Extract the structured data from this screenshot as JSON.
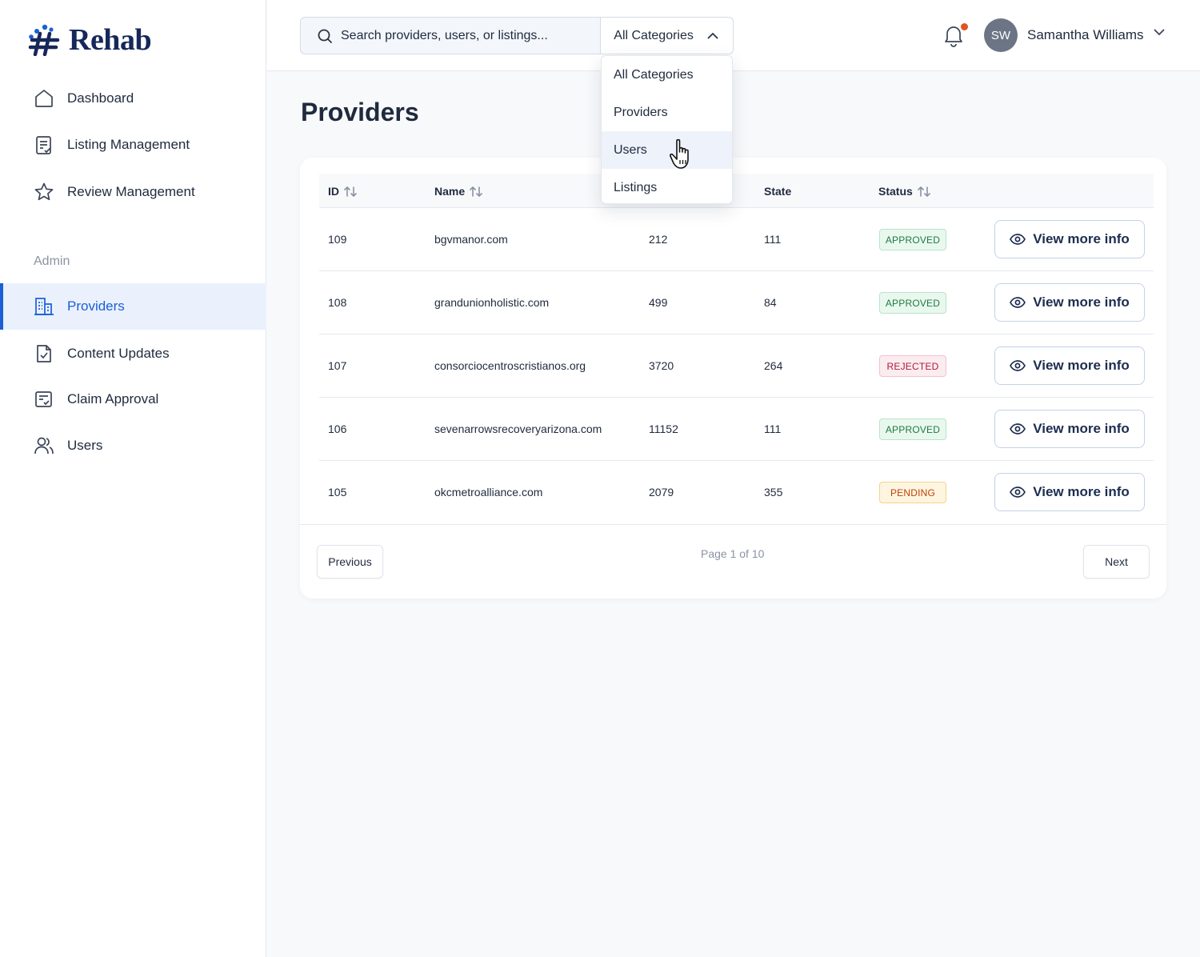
{
  "brand": {
    "name": "Rehab"
  },
  "sidebar": {
    "items": [
      {
        "label": "Dashboard",
        "icon": "home-icon"
      },
      {
        "label": "Listing Management",
        "icon": "clipboard-check-icon"
      },
      {
        "label": "Review Management",
        "icon": "star-icon"
      }
    ],
    "section_label": "Admin",
    "admin_items": [
      {
        "label": "Providers",
        "icon": "building-icon",
        "active": true
      },
      {
        "label": "Content Updates",
        "icon": "document-check-icon"
      },
      {
        "label": "Claim Approval",
        "icon": "form-check-icon"
      },
      {
        "label": "Users",
        "icon": "users-icon"
      }
    ]
  },
  "topbar": {
    "search_placeholder": "Search providers, users, or listings...",
    "category_selected": "All Categories",
    "category_options": [
      "All Categories",
      "Providers",
      "Users",
      "Listings"
    ],
    "hovered_option": "Users",
    "notification_dot_color": "#e0541f",
    "user": {
      "initials": "SW",
      "name": "Samantha Williams"
    }
  },
  "page": {
    "title": "Providers"
  },
  "table": {
    "columns": [
      "ID",
      "Name",
      "",
      "State",
      "Status"
    ],
    "sortable": [
      "ID",
      "Name",
      "Status"
    ],
    "action_label": "View more info",
    "rows": [
      {
        "id": "109",
        "name": "bgvmanor.com",
        "col3": "212",
        "state": "111",
        "status": "APPROVED"
      },
      {
        "id": "108",
        "name": "grandunionholistic.com",
        "col3": "499",
        "state": "84",
        "status": "APPROVED"
      },
      {
        "id": "107",
        "name": "consorciocentroscristianos.org",
        "col3": "3720",
        "state": "264",
        "status": "REJECTED"
      },
      {
        "id": "106",
        "name": "sevenarrowsrecoveryarizona.com",
        "col3": "11152",
        "state": "111",
        "status": "APPROVED"
      },
      {
        "id": "105",
        "name": "okcmetroalliance.com",
        "col3": "2079",
        "state": "355",
        "status": "PENDING"
      }
    ]
  },
  "pagination": {
    "previous": "Previous",
    "info": "Page 1 of 10",
    "next": "Next"
  },
  "colors": {
    "accent": "#1b5fd6",
    "brand": "#16275a"
  }
}
